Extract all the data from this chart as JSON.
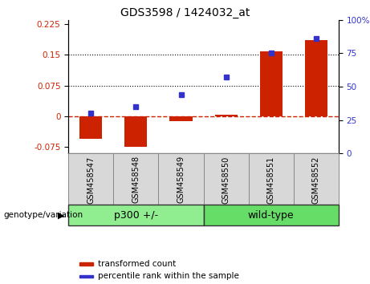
{
  "title": "GDS3598 / 1424032_at",
  "categories": [
    "GSM458547",
    "GSM458548",
    "GSM458549",
    "GSM458550",
    "GSM458551",
    "GSM458552"
  ],
  "transformed_counts": [
    -0.055,
    -0.075,
    -0.012,
    0.005,
    0.158,
    0.185
  ],
  "percentile_ranks": [
    30,
    35,
    44,
    57,
    75,
    86
  ],
  "red_color": "#cc2200",
  "blue_color": "#3333cc",
  "bar_width": 0.5,
  "ylim_left": [
    -0.09,
    0.235
  ],
  "ylim_right": [
    0,
    100
  ],
  "yticks_left": [
    -0.075,
    0,
    0.075,
    0.15,
    0.225
  ],
  "yticks_right": [
    0,
    25,
    50,
    75,
    100
  ],
  "hlines": [
    0.075,
    0.15
  ],
  "groups": [
    {
      "label": "p300 +/-",
      "indices": [
        0,
        1,
        2
      ],
      "color": "#90ee90"
    },
    {
      "label": "wild-type",
      "indices": [
        3,
        4,
        5
      ],
      "color": "#66dd66"
    }
  ],
  "group_label_prefix": "genotype/variation",
  "legend_items": [
    {
      "label": "transformed count",
      "color": "#cc2200"
    },
    {
      "label": "percentile rank within the sample",
      "color": "#3333cc"
    }
  ],
  "zero_line_color": "#cc2200",
  "grid_color": "black",
  "background_color": "#d8d8d8",
  "plot_bg": "white"
}
